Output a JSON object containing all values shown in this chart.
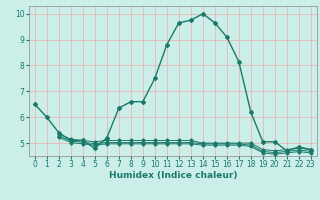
{
  "xlabel": "Humidex (Indice chaleur)",
  "bg_color": "#cceee8",
  "grid_color": "#e8b8b8",
  "line_color": "#1a7a6a",
  "xlim": [
    -0.5,
    23.5
  ],
  "ylim": [
    4.5,
    10.3
  ],
  "xticks": [
    0,
    1,
    2,
    3,
    4,
    5,
    6,
    7,
    8,
    9,
    10,
    11,
    12,
    13,
    14,
    15,
    16,
    17,
    18,
    19,
    20,
    21,
    22,
    23
  ],
  "yticks": [
    5,
    6,
    7,
    8,
    9,
    10
  ],
  "series": [
    {
      "x": [
        0,
        1,
        2,
        3,
        4,
        5,
        6,
        7,
        8,
        9,
        10,
        11,
        12,
        13,
        14,
        15,
        16,
        17,
        18,
        19,
        20,
        21,
        22,
        23
      ],
      "y": [
        6.5,
        6.0,
        5.4,
        5.1,
        5.1,
        4.8,
        5.2,
        6.35,
        6.6,
        6.6,
        7.5,
        8.8,
        9.65,
        9.75,
        10.0,
        9.65,
        9.1,
        8.15,
        6.2,
        5.05,
        5.05,
        4.7,
        4.85,
        4.75
      ]
    },
    {
      "x": [
        2,
        3,
        4,
        5,
        6,
        7,
        8,
        9,
        10,
        11,
        12,
        13,
        14,
        15,
        16,
        17,
        18,
        19,
        20,
        21,
        22,
        23
      ],
      "y": [
        5.35,
        5.15,
        5.1,
        5.05,
        5.1,
        5.1,
        5.1,
        5.1,
        5.1,
        5.1,
        5.1,
        5.1,
        5.0,
        5.0,
        5.0,
        5.0,
        5.0,
        4.75,
        4.7,
        4.75,
        4.8,
        4.75
      ]
    },
    {
      "x": [
        2,
        3,
        4,
        5,
        6,
        7,
        8,
        9,
        10,
        11,
        12,
        13,
        14,
        15,
        16,
        17,
        18,
        19,
        20,
        21,
        22,
        23
      ],
      "y": [
        5.28,
        5.08,
        5.03,
        4.98,
        5.02,
        5.02,
        5.02,
        5.02,
        5.02,
        5.02,
        5.02,
        5.02,
        4.97,
        4.97,
        4.97,
        4.97,
        4.92,
        4.68,
        4.63,
        4.68,
        4.73,
        4.68
      ]
    },
    {
      "x": [
        2,
        3,
        4,
        5,
        6,
        7,
        8,
        9,
        10,
        11,
        12,
        13,
        14,
        15,
        16,
        17,
        18,
        19,
        20,
        21,
        22,
        23
      ],
      "y": [
        5.22,
        5.02,
        4.97,
        4.92,
        4.97,
        4.97,
        4.97,
        4.97,
        4.97,
        4.97,
        4.97,
        4.97,
        4.92,
        4.92,
        4.92,
        4.92,
        4.87,
        4.62,
        4.57,
        4.62,
        4.67,
        4.62
      ]
    }
  ]
}
